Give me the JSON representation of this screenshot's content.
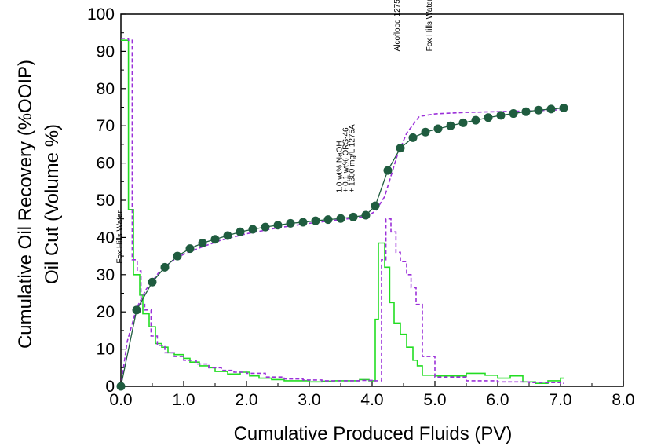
{
  "chart_data": {
    "type": "line",
    "xlabel": "Cumulative Produced Fluids (PV)",
    "ylabel_lines": [
      "Cumulative Oil Recovery (%OOIP)",
      "Oil Cut (Volume %)"
    ],
    "xlim": [
      0,
      8
    ],
    "ylim": [
      0,
      100
    ],
    "x_ticks": [
      "0.0",
      "1.0",
      "2.0",
      "3.0",
      "4.0",
      "5.0",
      "6.0",
      "7.0",
      "8.0"
    ],
    "y_ticks": [
      "0",
      "10",
      "20",
      "30",
      "40",
      "50",
      "60",
      "70",
      "80",
      "90",
      "100"
    ],
    "grid": false,
    "annotations": [
      {
        "text": "Fox Hills Water",
        "x": 0.02,
        "y": 33
      },
      {
        "text": "1.0 wt% NaOH",
        "x": 3.52,
        "y": 52
      },
      {
        "text": "+ 0.1 wt% ORS-46",
        "x": 3.62,
        "y": 52
      },
      {
        "text": "+ 1300 mg/L 1275A",
        "x": 3.72,
        "y": 52
      },
      {
        "text": "Alcoflood 1275A",
        "x": 4.44,
        "y": 90
      },
      {
        "text": "Fox Hills Water",
        "x": 4.95,
        "y": 90
      }
    ],
    "series": [
      {
        "kind": "markers-line",
        "color": "#1f5c3f",
        "x": [
          0.0,
          0.25,
          0.5,
          0.7,
          0.9,
          1.1,
          1.3,
          1.5,
          1.7,
          1.9,
          2.1,
          2.3,
          2.5,
          2.7,
          2.9,
          3.1,
          3.3,
          3.5,
          3.7,
          3.9,
          4.05,
          4.25,
          4.45,
          4.65,
          4.85,
          5.05,
          5.25,
          5.45,
          5.65,
          5.85,
          6.05,
          6.25,
          6.45,
          6.65,
          6.85,
          7.05
        ],
        "values": [
          0,
          20.5,
          28,
          32,
          35,
          37,
          38.5,
          39.5,
          40.5,
          41.5,
          42.2,
          42.8,
          43.3,
          43.8,
          44.1,
          44.5,
          44.8,
          45.1,
          45.5,
          46,
          48.5,
          58,
          64,
          66.8,
          68.3,
          69.2,
          70,
          70.8,
          71.5,
          72.2,
          72.8,
          73.3,
          73.8,
          74.2,
          74.5,
          74.8
        ]
      },
      {
        "kind": "line",
        "color": "#9b30d9",
        "dash": true,
        "x": [
          0.0,
          0.1,
          0.25,
          0.4,
          0.6,
          0.8,
          1.0,
          1.3,
          1.6,
          2.0,
          2.5,
          3.0,
          3.5,
          3.9,
          4.05,
          4.2,
          4.4,
          4.55,
          4.75,
          5.0,
          5.5,
          6.0,
          6.5,
          7.0
        ],
        "values": [
          0,
          12,
          21,
          26,
          30.5,
          33.5,
          35.5,
          37.5,
          39.3,
          41,
          42.6,
          43.8,
          44.8,
          45.6,
          47,
          51,
          62,
          68,
          72.5,
          73.2,
          73.6,
          73.8,
          74,
          74.3
        ]
      },
      {
        "kind": "step",
        "color": "#22dd22",
        "x": [
          0.0,
          0.08,
          0.12,
          0.2,
          0.3,
          0.35,
          0.45,
          0.55,
          0.65,
          0.75,
          0.85,
          1.0,
          1.1,
          1.25,
          1.4,
          1.5,
          1.7,
          1.9,
          2.05,
          2.2,
          2.4,
          2.6,
          2.8,
          3.0,
          3.2,
          3.4,
          3.6,
          3.8,
          3.95,
          4.05,
          4.1,
          4.2,
          4.28,
          4.35,
          4.45,
          4.55,
          4.65,
          4.72,
          4.8,
          5.0,
          5.2,
          5.5,
          5.8,
          6.0,
          6.2,
          6.4,
          6.6,
          6.8,
          7.0
        ],
        "values": [
          93,
          93,
          47.5,
          30,
          24.5,
          19.5,
          16,
          11.5,
          10.5,
          9,
          8.5,
          7.5,
          6.5,
          5.5,
          5,
          4,
          3.3,
          3.8,
          2.8,
          2.2,
          1.8,
          1.5,
          1.5,
          1.2,
          1.4,
          1.5,
          1.5,
          1.8,
          1.5,
          18,
          38.5,
          32,
          22.5,
          17,
          14,
          10.5,
          7,
          5.5,
          3,
          2.8,
          2.8,
          3.5,
          3,
          2.2,
          2.8,
          1.2,
          0.8,
          1.5,
          2.2
        ]
      },
      {
        "kind": "step",
        "color": "#9b30d9",
        "dash": true,
        "x": [
          0.0,
          0.12,
          0.18,
          0.26,
          0.32,
          0.38,
          0.48,
          0.58,
          0.7,
          0.85,
          1.0,
          1.2,
          1.4,
          1.6,
          1.8,
          2.0,
          2.3,
          2.6,
          2.9,
          3.2,
          3.5,
          3.8,
          4.0,
          4.15,
          4.22,
          4.3,
          4.38,
          4.45,
          4.55,
          4.62,
          4.7,
          4.8,
          5.0,
          5.5,
          6.0,
          6.5,
          7.0
        ],
        "values": [
          93.5,
          93,
          34,
          31,
          22,
          20.5,
          13.5,
          11,
          9,
          8,
          7,
          6,
          5,
          4.3,
          3.8,
          3.5,
          2.5,
          2,
          1.7,
          1.5,
          1.5,
          1.6,
          1.5,
          34,
          45,
          41.5,
          36,
          33.5,
          30,
          26.5,
          22,
          8,
          2.5,
          1.5,
          1.2,
          1,
          0.8
        ]
      }
    ]
  }
}
